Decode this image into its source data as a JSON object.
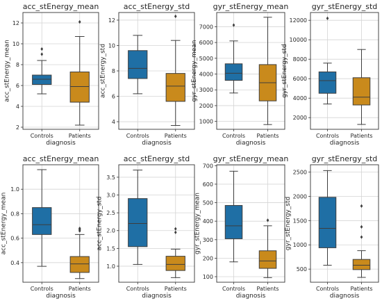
{
  "chart_data": [
    {
      "type": "box",
      "title": "acc_stEnergy_mean",
      "xlabel": "diagnosis",
      "ylabel": "acc_stEnergy_mean",
      "categories": [
        "Controls",
        "Patients"
      ],
      "ylim": [
        1.8,
        13.0
      ],
      "yticks": [
        2,
        4,
        6,
        8,
        10,
        12
      ],
      "boxes": [
        {
          "category": "Controls",
          "whisker_low": 5.2,
          "q1": 6.1,
          "median": 6.6,
          "q3": 7.0,
          "whisker_high": 8.4,
          "outliers": [
            9.0,
            9.5
          ],
          "color": "#1f6fa5"
        },
        {
          "category": "Patients",
          "whisker_low": 2.2,
          "q1": 4.4,
          "median": 5.9,
          "q3": 7.3,
          "whisker_high": 10.7,
          "outliers": [
            12.1
          ],
          "color": "#c98a1c"
        }
      ]
    },
    {
      "type": "box",
      "title": "acc_stEnergy_std",
      "xlabel": "diagnosis",
      "ylabel": "acc_stEnergy_std",
      "categories": [
        "Controls",
        "Patients"
      ],
      "ylim": [
        3.4,
        12.6
      ],
      "yticks": [
        4,
        6,
        8,
        10,
        12
      ],
      "boxes": [
        {
          "category": "Controls",
          "whisker_low": 6.2,
          "q1": 7.4,
          "median": 8.2,
          "q3": 9.6,
          "whisker_high": 10.8,
          "outliers": [],
          "color": "#1f6fa5"
        },
        {
          "category": "Patients",
          "whisker_low": 3.7,
          "q1": 5.6,
          "median": 6.8,
          "q3": 7.8,
          "whisker_high": 10.4,
          "outliers": [
            12.3
          ],
          "color": "#c98a1c"
        }
      ]
    },
    {
      "type": "box",
      "title": "gyr_stEnergy_mean",
      "xlabel": "diagnosis",
      "ylabel": "gyr_stEnergy_mean",
      "categories": [
        "Controls",
        "Patients"
      ],
      "ylim": [
        500,
        7900
      ],
      "yticks": [
        1000,
        2000,
        3000,
        4000,
        5000,
        6000,
        7000
      ],
      "boxes": [
        {
          "category": "Controls",
          "whisker_low": 2800,
          "q1": 3600,
          "median": 4050,
          "q3": 4650,
          "whisker_high": 6100,
          "outliers": [
            7100
          ],
          "color": "#1f6fa5"
        },
        {
          "category": "Patients",
          "whisker_low": 800,
          "q1": 2300,
          "median": 3450,
          "q3": 4600,
          "whisker_high": 7600,
          "outliers": [],
          "color": "#c98a1c"
        }
      ]
    },
    {
      "type": "box",
      "title": "gyr_stEnergy_std",
      "xlabel": "diagnosis",
      "ylabel": "gyr_stEnergy_std",
      "categories": [
        "Controls",
        "Patients"
      ],
      "ylim": [
        800,
        12800
      ],
      "yticks": [
        2000,
        4000,
        6000,
        8000,
        10000,
        12000
      ],
      "boxes": [
        {
          "category": "Controls",
          "whisker_low": 3400,
          "q1": 4500,
          "median": 5800,
          "q3": 6700,
          "whisker_high": 7600,
          "outliers": [
            12200
          ],
          "color": "#1f6fa5"
        },
        {
          "category": "Patients",
          "whisker_low": 1300,
          "q1": 3300,
          "median": 4100,
          "q3": 6100,
          "whisker_high": 9000,
          "outliers": [],
          "color": "#c98a1c"
        }
      ]
    },
    {
      "type": "box",
      "title": "acc_stEnergy_mean",
      "xlabel": "diagnosis",
      "ylabel": "acc_stEnergy_mean",
      "categories": [
        "Controls",
        "Patients"
      ],
      "ylim": [
        0.24,
        1.2
      ],
      "yticks": [
        0.4,
        0.6,
        0.8,
        1.0
      ],
      "yticklabels": [
        "0.4",
        "0.6",
        "0.8",
        "1.0"
      ],
      "boxes": [
        {
          "category": "Controls",
          "whisker_low": 0.37,
          "q1": 0.63,
          "median": 0.71,
          "q3": 0.85,
          "whisker_high": 1.16,
          "outliers": [],
          "color": "#1f6fa5"
        },
        {
          "category": "Patients",
          "whisker_low": 0.27,
          "q1": 0.32,
          "median": 0.39,
          "q3": 0.45,
          "whisker_high": 0.63,
          "outliers": [
            0.66,
            0.67,
            0.68
          ],
          "color": "#c98a1c"
        }
      ]
    },
    {
      "type": "box",
      "title": "acc_stEnergy_std",
      "xlabel": "diagnosis",
      "ylabel": "acc_stEnergy_std",
      "categories": [
        "Controls",
        "Patients"
      ],
      "ylim": [
        0.55,
        3.85
      ],
      "yticks": [
        1.0,
        1.5,
        2.0,
        2.5,
        3.0,
        3.5
      ],
      "yticklabels": [
        "1.0",
        "1.5",
        "2.0",
        "2.5",
        "3.0",
        "3.5"
      ],
      "boxes": [
        {
          "category": "Controls",
          "whisker_low": 1.05,
          "q1": 1.55,
          "median": 2.2,
          "q3": 2.9,
          "whisker_high": 3.7,
          "outliers": [],
          "color": "#1f6fa5"
        },
        {
          "category": "Patients",
          "whisker_low": 0.68,
          "q1": 0.88,
          "median": 1.05,
          "q3": 1.28,
          "whisker_high": 1.48,
          "outliers": [
            1.95,
            2.05
          ],
          "color": "#c98a1c"
        }
      ]
    },
    {
      "type": "box",
      "title": "gyr_stEnergy_mean",
      "xlabel": "diagnosis",
      "ylabel": "gyr_stEnergy_mean",
      "categories": [
        "Controls",
        "Patients"
      ],
      "ylim": [
        70,
        705
      ],
      "yticks": [
        100,
        200,
        300,
        400,
        500,
        600,
        700
      ],
      "boxes": [
        {
          "category": "Controls",
          "whisker_low": 180,
          "q1": 305,
          "median": 375,
          "q3": 485,
          "whisker_high": 670,
          "outliers": [],
          "color": "#1f6fa5"
        },
        {
          "category": "Patients",
          "whisker_low": 95,
          "q1": 145,
          "median": 185,
          "q3": 240,
          "whisker_high": 375,
          "outliers": [
            405
          ],
          "color": "#c98a1c"
        }
      ]
    },
    {
      "type": "box",
      "title": "gyr_stEnergy_std",
      "xlabel": "diagnosis",
      "ylabel": "gyr_stEnergy_std",
      "categories": [
        "Controls",
        "Patients"
      ],
      "ylim": [
        230,
        2650
      ],
      "yticks": [
        500,
        1000,
        1500,
        2000,
        2500
      ],
      "boxes": [
        {
          "category": "Controls",
          "whisker_low": 580,
          "q1": 940,
          "median": 1340,
          "q3": 1980,
          "whisker_high": 2530,
          "outliers": [],
          "color": "#1f6fa5"
        },
        {
          "category": "Patients",
          "whisker_low": 330,
          "q1": 490,
          "median": 580,
          "q3": 700,
          "whisker_high": 880,
          "outliers": [
            1160,
            1370,
            1800
          ],
          "color": "#c98a1c"
        }
      ]
    }
  ]
}
